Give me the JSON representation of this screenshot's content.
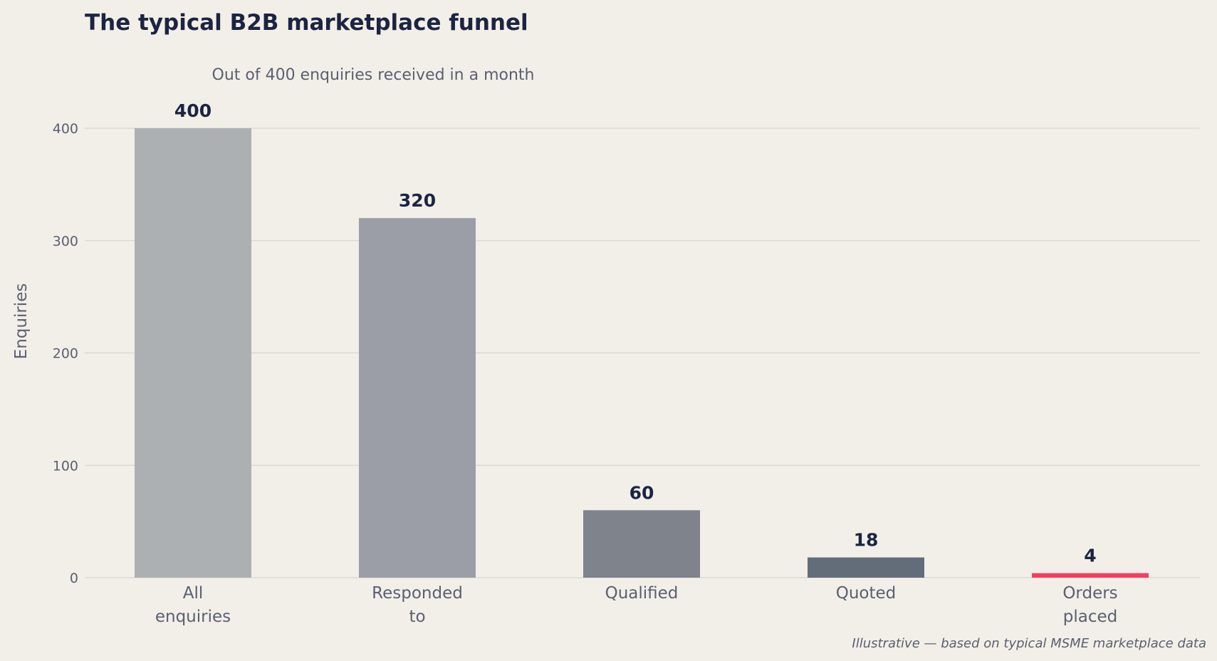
{
  "chart_data": {
    "type": "bar",
    "title": "The typical B2B marketplace funnel",
    "subtitle": "Out of 400 enquiries received in a month",
    "xlabel": "",
    "ylabel": "Enquiries",
    "categories": [
      [
        "All",
        "enquiries"
      ],
      [
        "Responded",
        "to"
      ],
      [
        "Qualified"
      ],
      [
        "Quoted"
      ],
      [
        "Orders",
        "placed"
      ]
    ],
    "values": [
      400,
      320,
      60,
      18,
      4
    ],
    "data_labels": [
      "400",
      "320",
      "60",
      "18",
      "4"
    ],
    "colors": [
      "#adb0b3",
      "#9b9ea6",
      "#7e838c",
      "#636c79",
      "#f43f5e"
    ],
    "ylim": [
      0,
      400
    ],
    "yticks": [
      0,
      100,
      200,
      300,
      400
    ],
    "grid": true,
    "footnote": "Illustrative — based on typical MSME marketplace data"
  }
}
